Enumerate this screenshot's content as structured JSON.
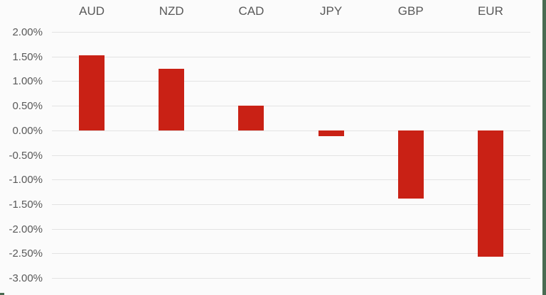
{
  "page": {
    "background_color": "#fbfbfb",
    "accent_border_color": "#4a6b52"
  },
  "chart_data": {
    "type": "bar",
    "title": "",
    "xlabel": "",
    "ylabel": "",
    "categories": [
      "AUD",
      "NZD",
      "CAD",
      "JPY",
      "GBP",
      "EUR"
    ],
    "values": [
      1.53,
      1.25,
      0.5,
      -0.12,
      -1.38,
      -2.57
    ],
    "value_unit": "%",
    "ylim": [
      -3.0,
      2.0
    ],
    "ytick_step": 0.5,
    "yticks": [
      2.0,
      1.5,
      1.0,
      0.5,
      0.0,
      -0.5,
      -1.0,
      -1.5,
      -2.0,
      -2.5,
      -3.0
    ],
    "ytick_labels": [
      "2.00%",
      "1.50%",
      "1.00%",
      "0.50%",
      "0.00%",
      "-0.50%",
      "-1.00%",
      "-1.50%",
      "-2.00%",
      "-2.50%",
      "-3.00%"
    ],
    "grid": true,
    "legend": false,
    "category_label_position": "top",
    "bar_color": "#c92115",
    "gridline_color": "#e3e3e3",
    "text_color": "#595959"
  }
}
